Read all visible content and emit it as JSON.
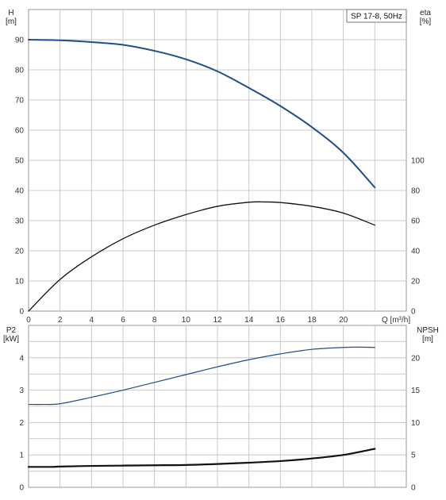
{
  "chart_data": [
    {
      "type": "line",
      "title": "SP 17-8, 50Hz",
      "xlabel": "Q [m³/h]",
      "xlim": [
        0,
        24
      ],
      "xticks": [
        0,
        2,
        4,
        6,
        8,
        10,
        12,
        14,
        16,
        18,
        20
      ],
      "left_axis": {
        "label_line1": "H",
        "label_line2": "[m]",
        "ylim": [
          0,
          100
        ],
        "ticks": [
          0,
          10,
          20,
          30,
          40,
          50,
          60,
          70,
          80,
          90
        ]
      },
      "right_axis": {
        "label_line1": "eta",
        "label_line2": "[%]",
        "ylim": [
          0,
          200
        ],
        "ticks": [
          0,
          20,
          40,
          60,
          80,
          100
        ]
      },
      "grid": true,
      "colors": {
        "head": "#1f4e8c",
        "efficiency": "#111111",
        "grid": "#c8c8c8",
        "axis": "#888888"
      },
      "series": [
        {
          "key": "head",
          "axis": "left",
          "x": [
            0,
            2,
            4,
            6,
            8,
            10,
            12,
            14,
            16,
            18,
            20,
            22
          ],
          "y": [
            90,
            89.8,
            89.2,
            88.3,
            86.3,
            83.5,
            79.5,
            74.0,
            68.0,
            61.0,
            52.5,
            41.0
          ]
        },
        {
          "key": "efficiency",
          "axis": "right",
          "x": [
            0,
            2,
            4,
            6,
            8,
            10,
            12,
            14,
            15,
            16,
            18,
            20,
            22
          ],
          "y": [
            0,
            21,
            36,
            48,
            57,
            64,
            69.5,
            72.2,
            72.4,
            72.0,
            69.5,
            65.0,
            57.0
          ]
        }
      ]
    },
    {
      "type": "line",
      "xlabel": "",
      "xlim": [
        0,
        24
      ],
      "left_axis": {
        "label_line1": "P2",
        "label_line2": "[kW]",
        "ylim": [
          0,
          5
        ],
        "ticks": [
          0,
          1,
          2,
          3,
          4
        ]
      },
      "right_axis": {
        "label_line1": "NPSH",
        "label_line2": "[m]",
        "ylim": [
          0,
          25
        ],
        "ticks": [
          0,
          5,
          10,
          15,
          20
        ]
      },
      "grid": true,
      "colors": {
        "npsh": "#1f4e8c",
        "power": "#111111",
        "grid": "#c8c8c8",
        "axis": "#888888"
      },
      "series": [
        {
          "key": "npsh",
          "axis": "right",
          "x": [
            0,
            1,
            2,
            4,
            6,
            8,
            10,
            12,
            14,
            16,
            18,
            20,
            21,
            22
          ],
          "y": [
            12.8,
            12.8,
            12.9,
            13.9,
            15.0,
            16.2,
            17.4,
            18.6,
            19.7,
            20.6,
            21.3,
            21.6,
            21.65,
            21.6
          ]
        },
        {
          "key": "power",
          "axis": "left",
          "x": [
            0,
            1.5,
            2,
            4,
            6,
            8,
            10,
            12,
            14,
            16,
            18,
            20,
            22
          ],
          "y": [
            0.63,
            0.63,
            0.64,
            0.66,
            0.67,
            0.68,
            0.69,
            0.72,
            0.76,
            0.81,
            0.89,
            1.0,
            1.19
          ]
        }
      ]
    }
  ]
}
